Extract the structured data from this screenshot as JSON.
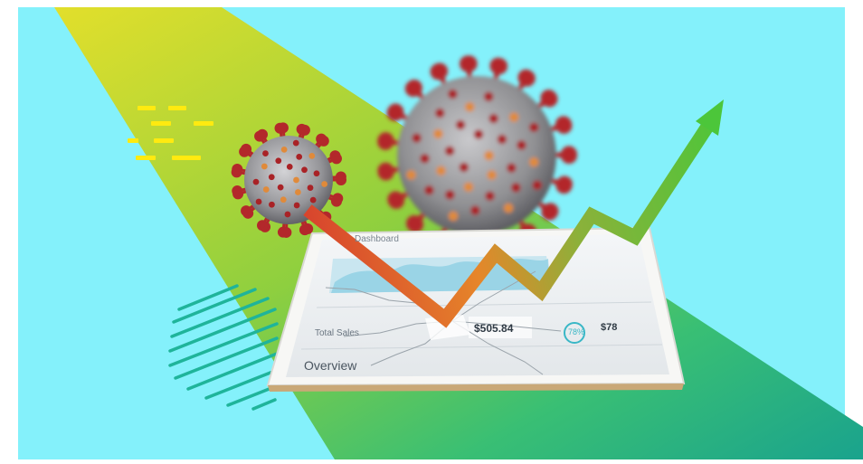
{
  "tablet": {
    "dashboard_title": "Dashboard",
    "price_value": "$505.84",
    "sales_label": "Total Sales",
    "overview_label": "Overview",
    "percent_value": "78%",
    "price_value_2": "$78"
  },
  "colors": {
    "sky": "#84f1fb",
    "beam_yellow": "#e2df2b",
    "beam_green": "#39bf74",
    "beam_teal": "#1aa38d",
    "stripe_teal": "#1fb49a",
    "dash_yellow": "#ffea10",
    "arrow_red": "#d8452d",
    "arrow_orange": "#e6862a",
    "arrow_green": "#4cc63a",
    "virus_body": "#8f8f92",
    "virus_spike": "#b3282b"
  }
}
